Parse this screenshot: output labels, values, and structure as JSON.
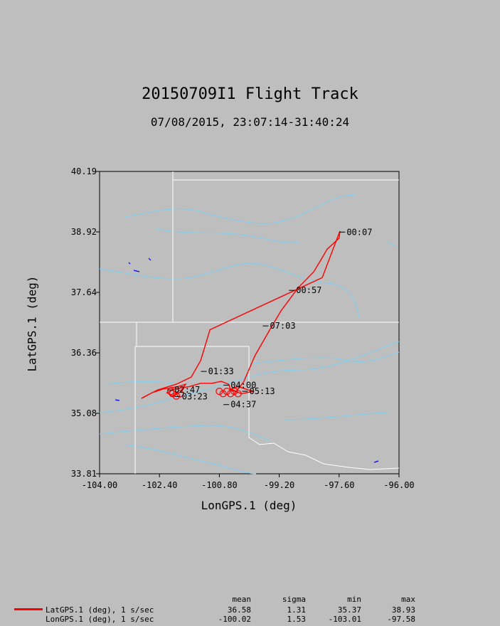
{
  "chart_data": {
    "type": "line",
    "title": "20150709I1 Flight Track",
    "subtitle": "07/08/2015, 23:07:14-31:40:24",
    "xlabel": "LonGPS.1 (deg)",
    "ylabel": "LatGPS.1 (deg)",
    "xlim": [
      -104.0,
      -96.0
    ],
    "ylim": [
      33.81,
      40.19
    ],
    "x_ticks": [
      "-104.00",
      "-102.40",
      "-100.80",
      "-99.20",
      "-97.60",
      "-96.00"
    ],
    "y_ticks": [
      "40.19",
      "38.92",
      "37.64",
      "36.36",
      "35.08",
      "33.81"
    ],
    "series": [
      {
        "name": "LatGPS.1 (deg), 1 s/sec",
        "color": "#ff0000",
        "points": [
          [
            -97.58,
            38.93
          ],
          [
            -97.6,
            38.78
          ],
          [
            -97.92,
            38.55
          ],
          [
            -98.08,
            38.33
          ],
          [
            -98.28,
            38.07
          ],
          [
            -98.7,
            37.73
          ],
          [
            -99.15,
            37.25
          ],
          [
            -99.45,
            36.85
          ],
          [
            -99.85,
            36.3
          ],
          [
            -100.15,
            35.75
          ],
          [
            -100.35,
            35.55
          ],
          [
            -100.5,
            35.6
          ],
          [
            -100.3,
            35.65
          ],
          [
            -100.1,
            35.6
          ],
          [
            -99.9,
            35.55
          ],
          [
            -100.2,
            35.5
          ],
          [
            -100.5,
            35.58
          ],
          [
            -100.55,
            35.7
          ],
          [
            -100.75,
            35.76
          ],
          [
            -101.0,
            35.72
          ],
          [
            -101.3,
            35.72
          ],
          [
            -101.6,
            35.65
          ],
          [
            -102.0,
            35.6
          ],
          [
            -102.2,
            35.52
          ],
          [
            -102.05,
            35.45
          ],
          [
            -101.85,
            35.53
          ],
          [
            -101.7,
            35.7
          ],
          [
            -101.9,
            35.65
          ],
          [
            -102.3,
            35.6
          ],
          [
            -102.6,
            35.52
          ],
          [
            -102.88,
            35.4
          ],
          [
            -102.82,
            35.43
          ],
          [
            -102.45,
            35.58
          ],
          [
            -101.95,
            35.7
          ],
          [
            -101.55,
            35.85
          ],
          [
            -101.3,
            36.2
          ],
          [
            -101.05,
            36.85
          ],
          [
            -98.05,
            37.95
          ],
          [
            -97.58,
            38.93
          ]
        ]
      },
      {
        "name": "LonGPS.1 (deg), 1 s/sec"
      }
    ],
    "time_labels": [
      {
        "text": "00:07",
        "lon": -97.4,
        "lat": 38.91
      },
      {
        "text": "00:57",
        "lon": -98.75,
        "lat": 37.68
      },
      {
        "text": "07:03",
        "lon": -99.45,
        "lat": 36.93
      },
      {
        "text": "01:33",
        "lon": -101.1,
        "lat": 35.97
      },
      {
        "text": "04:00",
        "lon": -100.5,
        "lat": 35.68
      },
      {
        "text": "05:13",
        "lon": -100.0,
        "lat": 35.55
      },
      {
        "text": "04:37",
        "lon": -100.5,
        "lat": 35.27
      },
      {
        "text": "02:47",
        "lon": -102.0,
        "lat": 35.58
      },
      {
        "text": "03:23",
        "lon": -101.8,
        "lat": 35.44
      }
    ],
    "grid": false,
    "legend_position": "bottom-left"
  },
  "stats": {
    "headers": [
      "mean",
      "sigma",
      "min",
      "max"
    ],
    "rows": [
      {
        "label": "LatGPS.1 (deg), 1 s/sec",
        "mean": "36.58",
        "sigma": "1.31",
        "min": "35.37",
        "max": "38.93"
      },
      {
        "label": "LonGPS.1 (deg), 1 s/sec",
        "mean": "-100.02",
        "sigma": "1.53",
        "min": "-103.01",
        "max": "-97.58"
      }
    ]
  },
  "colors": {
    "background": "#bebebe",
    "track": "#ff0000",
    "rivers": "#87ceeb",
    "boundaries": "#ffffff",
    "lakes": "#0000ff"
  }
}
